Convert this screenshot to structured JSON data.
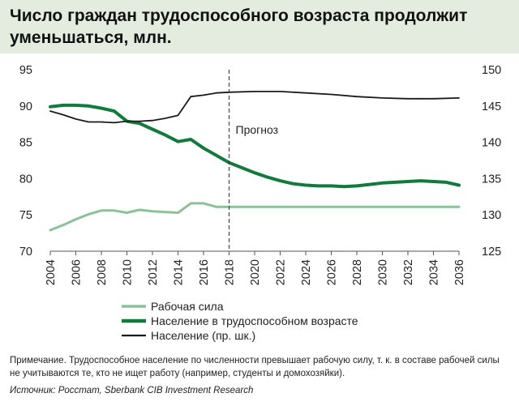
{
  "title": "Число граждан трудоспособного возраста продолжит уменьшаться, млн.",
  "chart_data": {
    "type": "line",
    "title": "Число граждан трудоспособного возраста продолжит уменьшаться, млн.",
    "x_ticks": [
      "2004",
      "2006",
      "2008",
      "2010",
      "2012",
      "2014",
      "2016",
      "2018",
      "2020",
      "2022",
      "2024",
      "2026",
      "2028",
      "2030",
      "2032",
      "2034",
      "2036"
    ],
    "y_left_ticks": [
      "70",
      "75",
      "80",
      "85",
      "90",
      "95"
    ],
    "y_right_ticks": [
      "125",
      "130",
      "135",
      "140",
      "145",
      "150"
    ],
    "y_left_lim": [
      70,
      95
    ],
    "y_right_lim": [
      125,
      150
    ],
    "x_lim": [
      2004,
      2036
    ],
    "forecast": {
      "x": 2018,
      "label": "Прогноз"
    },
    "grid": false,
    "legend_position": "bottom-left",
    "series": [
      {
        "name": "Рабочая сила",
        "axis": "left",
        "color": "#8cc19a",
        "width": 3,
        "x": [
          2004,
          2005,
          2006,
          2007,
          2008,
          2009,
          2010,
          2011,
          2012,
          2013,
          2014,
          2015,
          2016,
          2017,
          2018,
          2020,
          2022,
          2024,
          2026,
          2028,
          2030,
          2032,
          2034,
          2036
        ],
        "values": [
          72.9,
          73.6,
          74.4,
          75.1,
          75.6,
          75.6,
          75.3,
          75.7,
          75.5,
          75.4,
          75.3,
          76.6,
          76.6,
          76.1,
          76.1,
          76.1,
          76.1,
          76.1,
          76.1,
          76.1,
          76.1,
          76.1,
          76.1,
          76.1
        ]
      },
      {
        "name": "Население в трудоспособном возрасте",
        "axis": "left",
        "color": "#117a3c",
        "width": 4,
        "x": [
          2004,
          2005,
          2006,
          2007,
          2008,
          2009,
          2010,
          2011,
          2012,
          2013,
          2014,
          2015,
          2016,
          2017,
          2018,
          2019,
          2020,
          2021,
          2022,
          2023,
          2024,
          2025,
          2026,
          2027,
          2028,
          2029,
          2030,
          2031,
          2032,
          2033,
          2034,
          2035,
          2036
        ],
        "values": [
          89.9,
          90.1,
          90.1,
          90.0,
          89.7,
          89.3,
          87.9,
          87.6,
          86.8,
          86.0,
          85.1,
          85.4,
          84.2,
          83.2,
          82.2,
          81.5,
          80.8,
          80.2,
          79.7,
          79.3,
          79.1,
          79.0,
          79.0,
          78.9,
          79.0,
          79.2,
          79.4,
          79.5,
          79.6,
          79.7,
          79.6,
          79.5,
          79.1
        ]
      },
      {
        "name": "Население (пр. шк.)",
        "axis": "right",
        "color": "#1a1a1a",
        "width": 1.8,
        "x": [
          2004,
          2005,
          2006,
          2007,
          2008,
          2009,
          2010,
          2011,
          2012,
          2013,
          2014,
          2015,
          2016,
          2017,
          2018,
          2020,
          2022,
          2024,
          2026,
          2028,
          2030,
          2032,
          2034,
          2036
        ],
        "values": [
          144.3,
          143.8,
          143.2,
          142.8,
          142.8,
          142.7,
          142.9,
          142.9,
          143.0,
          143.3,
          143.7,
          146.3,
          146.5,
          146.8,
          146.9,
          147.0,
          147.0,
          146.8,
          146.6,
          146.3,
          146.1,
          146.0,
          146.0,
          146.1
        ]
      }
    ]
  },
  "legend": [
    {
      "label": "Рабочая сила",
      "color": "#8cc19a",
      "width": 3
    },
    {
      "label": "Население в трудоспособном возрасте",
      "color": "#117a3c",
      "width": 4
    },
    {
      "label": "Население (пр. шк.)",
      "color": "#1a1a1a",
      "width": 1.8
    }
  ],
  "note": "Примечание. Трудоспособное население по численности превышает рабочую силу, т. к. в составе рабочей силы не учитываются те, кто не ищет работу (например, студенты и домохозяйки).",
  "source": "Источник: Росстат, Sberbank CIB Investment Research"
}
